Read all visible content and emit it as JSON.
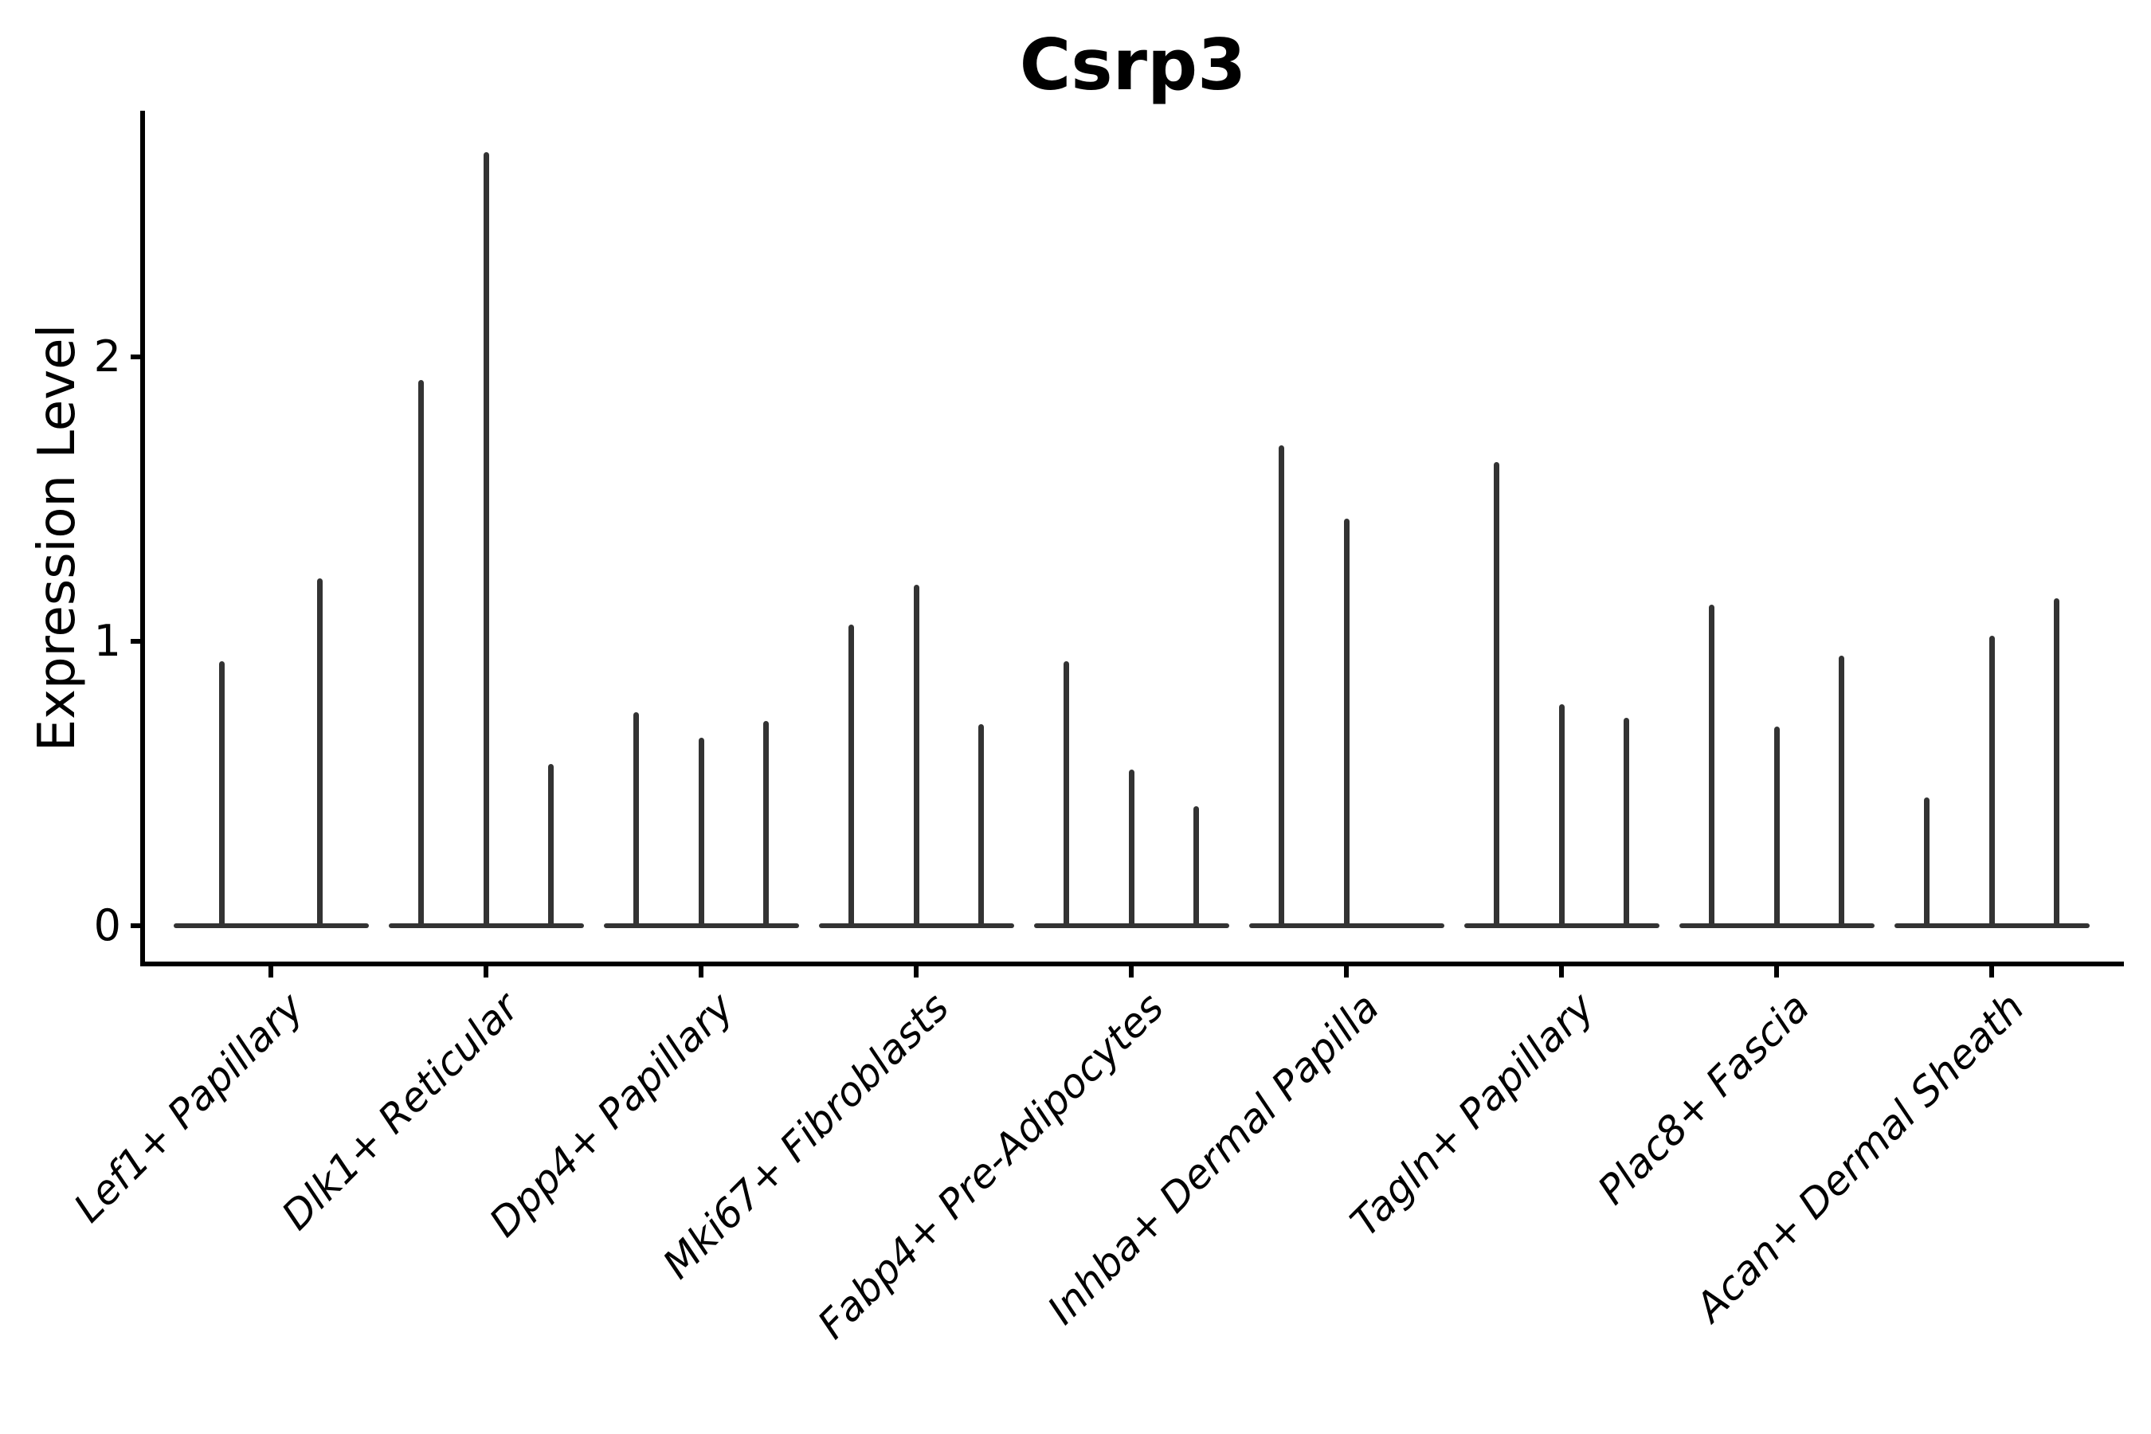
{
  "chart_data": {
    "type": "violin",
    "title": "Csrp3",
    "ylabel": "Expression Level",
    "xlabel": "",
    "yticks": [
      "0",
      "1",
      "2"
    ],
    "ylim": [
      -0.05,
      2.87
    ],
    "grid": false,
    "legend": false,
    "axis_color": "#000000",
    "violin_color": "#333333",
    "note": "Each category shows 2-3 razor-thin violins: a flat base at expression 0 with a thin spike up to the max expression value",
    "categories": [
      "Lef1+ Papillary",
      "Dlk1+ Reticular",
      "Dpp4+ Papillary",
      "Mki67+ Fibroblasts",
      "Fabp4+ Pre-Adipocytes",
      "Inhba+ Dermal Papilla",
      "Tagln+ Papillary",
      "Plac8+ Fascia",
      "Acan+ Dermal Sheath"
    ],
    "groups": [
      {
        "category": "Lef1+ Papillary",
        "spike_max_values": [
          0.93,
          1.22
        ]
      },
      {
        "category": "Dlk1+ Reticular",
        "spike_max_values": [
          1.92,
          2.72,
          0.57
        ]
      },
      {
        "category": "Dpp4+ Papillary",
        "spike_max_values": [
          0.75,
          0.66,
          0.72
        ]
      },
      {
        "category": "Mki67+ Fibroblasts",
        "spike_max_values": [
          1.06,
          1.2,
          0.71
        ]
      },
      {
        "category": "Fabp4+ Pre-Adipocytes",
        "spike_max_values": [
          0.93,
          0.55,
          0.42
        ]
      },
      {
        "category": "Inhba+ Dermal Papilla",
        "spike_max_values": [
          1.69,
          1.43,
          0
        ]
      },
      {
        "category": "Tagln+ Papillary",
        "spike_max_values": [
          1.63,
          0.78,
          0.73
        ]
      },
      {
        "category": "Plac8+ Fascia",
        "spike_max_values": [
          1.13,
          0.7,
          0.95
        ]
      },
      {
        "category": "Acan+ Dermal Sheath",
        "spike_max_values": [
          0.45,
          1.02,
          1.15
        ]
      }
    ]
  }
}
